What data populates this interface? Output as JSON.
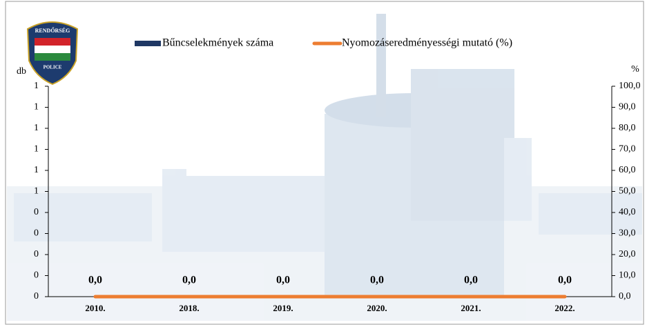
{
  "logo": {
    "top": "RENDŐRSÉG",
    "bottom": "POLICE"
  },
  "chart_data": {
    "type": "combo",
    "y_label": "db",
    "y2_label": "%",
    "categories": [
      "2010.",
      "2018.",
      "2019.",
      "2020.",
      "2021.",
      "2022."
    ],
    "series": [
      {
        "name": "Bűncselekmények száma",
        "type": "bar",
        "color": "#1f3864",
        "values": [
          0,
          0,
          0,
          0,
          0,
          0
        ]
      },
      {
        "name": "Nyomozáseredményességi mutató (%)",
        "type": "line",
        "axis": "y2",
        "color": "#ed7d31",
        "values": [
          0,
          0,
          0,
          0,
          0,
          0
        ],
        "value_labels": [
          "0,0",
          "0,0",
          "0,0",
          "0,0",
          "0,0",
          "0,0"
        ]
      }
    ],
    "ylim": [
      0,
      1
    ],
    "yticks": [
      0,
      {
        "value": 0.1,
        "label": "0"
      },
      {
        "value": 0.2,
        "label": "0"
      },
      {
        "value": 0.3,
        "label": "0"
      },
      {
        "value": 0.4,
        "label": "0"
      },
      {
        "value": 0.5,
        "label": "1"
      },
      {
        "value": 0.6,
        "label": "1"
      },
      {
        "value": 0.7,
        "label": "1"
      },
      {
        "value": 0.8,
        "label": "1"
      },
      {
        "value": 0.9,
        "label": "1"
      },
      1
    ],
    "y2lim": [
      0,
      100
    ],
    "y2ticks": [
      {
        "value": 0,
        "label": "0,0"
      },
      {
        "value": 10,
        "label": "10,0"
      },
      {
        "value": 20,
        "label": "20,0"
      },
      {
        "value": 30,
        "label": "30,0"
      },
      {
        "value": 40,
        "label": "40,0"
      },
      {
        "value": 50,
        "label": "50,0"
      },
      {
        "value": 60,
        "label": "60,0"
      },
      {
        "value": 70,
        "label": "70,0"
      },
      {
        "value": 80,
        "label": "80,0"
      },
      {
        "value": 90,
        "label": "90,0"
      },
      {
        "value": 100,
        "label": "100,0"
      }
    ]
  }
}
